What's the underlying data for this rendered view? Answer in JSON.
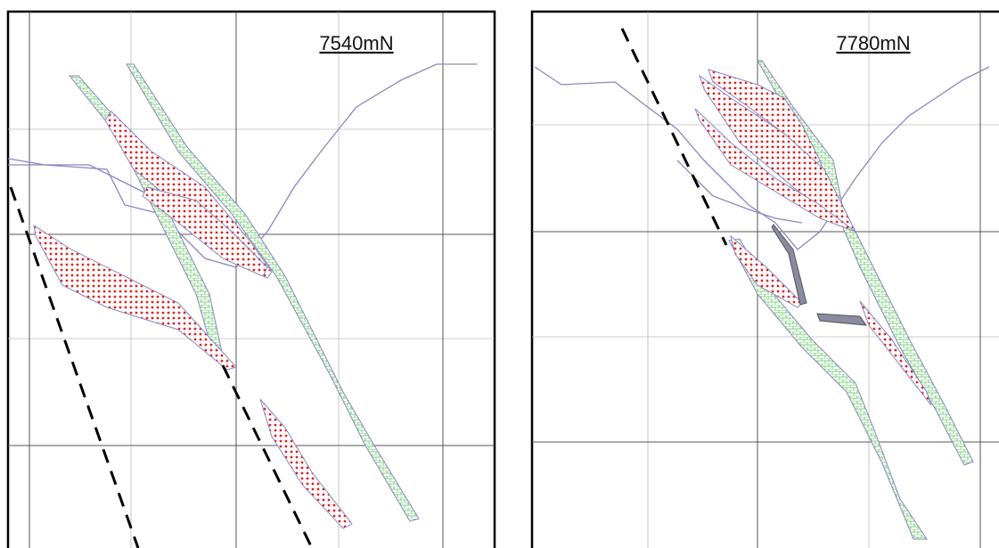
{
  "panels": [
    {
      "title": "7540mN"
    },
    {
      "title": "7780mN"
    }
  ]
}
